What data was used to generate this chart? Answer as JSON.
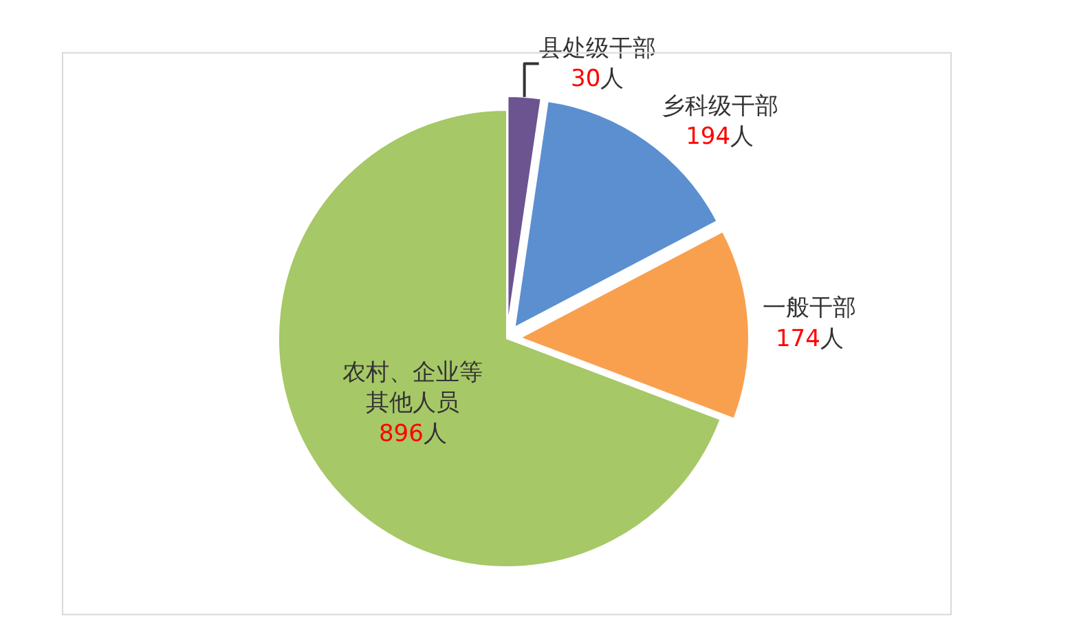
{
  "chart_data": {
    "type": "pie",
    "categories": [
      "县处级干部",
      "乡科级干部",
      "一般干部",
      "农村、企业等其他人员"
    ],
    "values": [
      30,
      194,
      174,
      896
    ],
    "value_labels": [
      "30人",
      "194人",
      "174人",
      "896人"
    ],
    "colors": [
      "#6b548f",
      "#5b8fd0",
      "#f9a04f",
      "#a6c866"
    ],
    "legend": false
  }
}
